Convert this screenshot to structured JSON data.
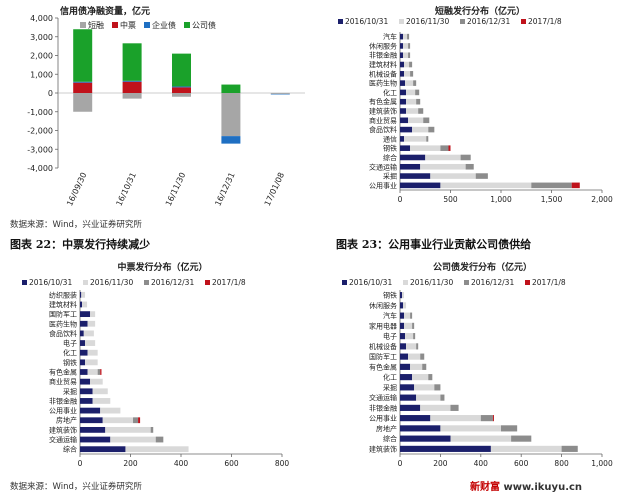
{
  "colors": {
    "navy": "#1b1f6b",
    "lightgray": "#d9d9d9",
    "darkgray": "#8c8c8c",
    "red": "#c0121b",
    "green": "#1aa12a",
    "blue": "#1f6fc2",
    "gray": "#a6a6a6"
  },
  "page": {
    "source_top": "数据来源：Wind，兴业证券研究所",
    "source_bottom": "数据来源：Wind，兴业证券研究所",
    "caption_left": "图表 22：中票发行持续减少",
    "caption_right": "图表 23：公用事业行业贡献公司债供给",
    "watermark_left": "新财富",
    "watermark_right": " www.ikuyu.cn"
  },
  "chart_data": [
    {
      "id": "net",
      "type": "bar",
      "title": "信用债净融资量，亿元",
      "categories": [
        "16/09/30",
        "16/10/31",
        "16/11/30",
        "16/12/31",
        "17/01/08"
      ],
      "series": [
        {
          "name": "短融",
          "color": "#a6a6a6",
          "values": [
            -1000,
            -300,
            -200,
            -2300,
            -50
          ]
        },
        {
          "name": "中票",
          "color": "#c0121b",
          "values": [
            550,
            600,
            300,
            0,
            0
          ]
        },
        {
          "name": "企业债",
          "color": "#1f6fc2",
          "values": [
            50,
            50,
            50,
            -400,
            -10
          ]
        },
        {
          "name": "公司债",
          "color": "#1aa12a",
          "values": [
            2800,
            2000,
            1750,
            450,
            0
          ]
        }
      ],
      "ylim": [
        -4000,
        4000
      ],
      "yticks": [
        "4,000",
        "3,000",
        "2,000",
        "1,000",
        "0",
        "-1,000",
        "-2,000",
        "-3,000",
        "-4,000"
      ]
    },
    {
      "id": "cp",
      "type": "bar",
      "orientation": "horizontal",
      "title": "短融发行分布（亿元）",
      "legend": [
        "2016/10/31",
        "2016/11/30",
        "2016/12/31",
        "2017/1/8"
      ],
      "categories": [
        "汽车",
        "休闲服务",
        "非银金融",
        "建筑材料",
        "机械设备",
        "医药生物",
        "化工",
        "有色金属",
        "建筑装饰",
        "商业贸易",
        "食品饮料",
        "通信",
        "钢铁",
        "综合",
        "交通运输",
        "采掘",
        "公用事业"
      ],
      "series": [
        {
          "name": "2016/10/31",
          "color": "#1b1f6b",
          "values": [
            30,
            30,
            30,
            40,
            40,
            50,
            60,
            60,
            60,
            80,
            120,
            40,
            100,
            250,
            200,
            300,
            400
          ]
        },
        {
          "name": "2016/11/30",
          "color": "#d9d9d9",
          "values": [
            40,
            50,
            50,
            50,
            60,
            80,
            90,
            100,
            120,
            150,
            160,
            220,
            300,
            350,
            450,
            450,
            900
          ]
        },
        {
          "name": "2016/12/31",
          "color": "#8c8c8c",
          "values": [
            20,
            20,
            20,
            30,
            30,
            30,
            40,
            40,
            50,
            60,
            60,
            20,
            80,
            100,
            80,
            120,
            400
          ]
        },
        {
          "name": "2017/1/8",
          "color": "#c0121b",
          "values": [
            0,
            0,
            0,
            0,
            0,
            0,
            0,
            0,
            0,
            0,
            0,
            0,
            20,
            0,
            0,
            0,
            80
          ]
        }
      ],
      "xlim": [
        0,
        2000
      ],
      "xticks": [
        "0",
        "500",
        "1,000",
        "1,500",
        "2,000"
      ]
    },
    {
      "id": "mtn",
      "type": "bar",
      "orientation": "horizontal",
      "title": "中票发行分布（亿元）",
      "legend": [
        "2016/10/31",
        "2016/11/30",
        "2016/12/31",
        "2017/1/8"
      ],
      "categories": [
        "纺织服装",
        "建筑材料",
        "国防军工",
        "医药生物",
        "食品饮料",
        "电子",
        "化工",
        "钢铁",
        "有色金属",
        "商业贸易",
        "采掘",
        "非银金融",
        "公用事业",
        "房地产",
        "建筑装饰",
        "交通运输",
        "综合"
      ],
      "series": [
        {
          "name": "2016/10/31",
          "color": "#1b1f6b",
          "values": [
            5,
            8,
            40,
            30,
            15,
            20,
            30,
            20,
            30,
            40,
            50,
            50,
            80,
            90,
            100,
            120,
            180
          ]
        },
        {
          "name": "2016/11/30",
          "color": "#d9d9d9",
          "values": [
            15,
            20,
            20,
            30,
            40,
            40,
            40,
            50,
            40,
            50,
            60,
            70,
            80,
            120,
            180,
            180,
            250
          ]
        },
        {
          "name": "2016/12/31",
          "color": "#8c8c8c",
          "values": [
            0,
            0,
            0,
            0,
            0,
            0,
            0,
            0,
            10,
            0,
            0,
            0,
            0,
            20,
            10,
            30,
            0
          ]
        },
        {
          "name": "2017/1/8",
          "color": "#c0121b",
          "values": [
            0,
            0,
            0,
            0,
            0,
            0,
            0,
            0,
            5,
            0,
            0,
            0,
            0,
            8,
            0,
            0,
            0
          ]
        }
      ],
      "xlim": [
        0,
        800
      ],
      "xticks": [
        "0",
        "200",
        "400",
        "600",
        "800"
      ]
    },
    {
      "id": "corp",
      "type": "bar",
      "orientation": "horizontal",
      "title": "公司债发行分布（亿元）",
      "legend": [
        "2016/10/31",
        "2016/11/30",
        "2016/12/31",
        "2017/1/8"
      ],
      "categories": [
        "钢铁",
        "休闲服务",
        "汽车",
        "家用电器",
        "电子",
        "机械设备",
        "国防军工",
        "有色金属",
        "化工",
        "采掘",
        "交通运输",
        "非银金融",
        "公用事业",
        "房地产",
        "综合",
        "建筑装饰"
      ],
      "series": [
        {
          "name": "2016/10/31",
          "color": "#1b1f6b",
          "values": [
            10,
            15,
            20,
            20,
            25,
            30,
            40,
            50,
            60,
            70,
            80,
            100,
            150,
            200,
            250,
            450
          ]
        },
        {
          "name": "2016/11/30",
          "color": "#d9d9d9",
          "values": [
            10,
            15,
            30,
            40,
            40,
            50,
            60,
            60,
            80,
            100,
            120,
            150,
            250,
            300,
            300,
            350
          ]
        },
        {
          "name": "2016/12/31",
          "color": "#8c8c8c",
          "values": [
            0,
            0,
            10,
            10,
            10,
            10,
            20,
            20,
            20,
            30,
            20,
            40,
            60,
            80,
            100,
            80
          ]
        },
        {
          "name": "2017/1/8",
          "color": "#c0121b",
          "values": [
            0,
            0,
            0,
            0,
            0,
            0,
            0,
            0,
            0,
            0,
            0,
            0,
            5,
            0,
            0,
            0
          ]
        }
      ],
      "xlim": [
        0,
        1000
      ],
      "xticks": [
        "0",
        "200",
        "400",
        "600",
        "800",
        "1,000"
      ]
    }
  ]
}
